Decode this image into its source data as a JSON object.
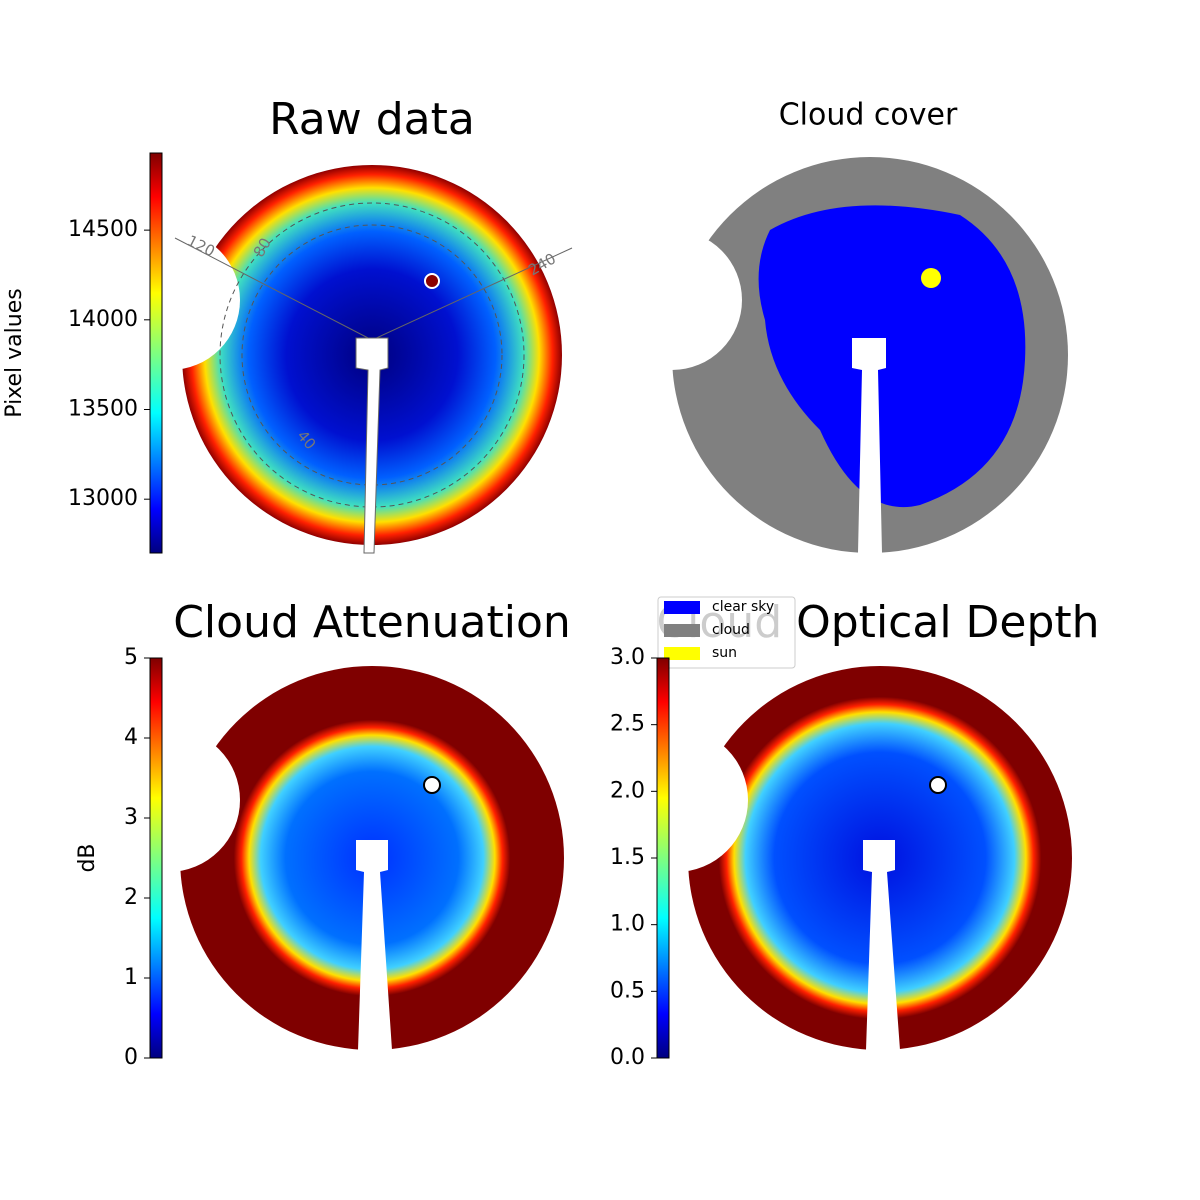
{
  "chart_data": [
    {
      "type": "image",
      "title": "Raw data",
      "clabel": "Pixel values",
      "clim": [
        12700,
        14930
      ],
      "cticks": [
        13000,
        13500,
        14000,
        14500
      ],
      "annotations": [
        "120",
        "80",
        "240",
        "40"
      ]
    },
    {
      "type": "categorical",
      "title": "Cloud cover",
      "legend": [
        {
          "name": "clear sky",
          "color": "#0000ff"
        },
        {
          "name": "cloud",
          "color": "#808080"
        },
        {
          "name": "sun",
          "color": "#ffff00"
        }
      ]
    },
    {
      "type": "image",
      "title": "Cloud Attenuation",
      "clabel": "dB",
      "clim": [
        0,
        5
      ],
      "cticks": [
        0,
        1,
        2,
        3,
        4,
        5
      ]
    },
    {
      "type": "image",
      "title": "Cloud Optical Depth",
      "clim": [
        0,
        3
      ],
      "cticks": [
        {
          "value": 0,
          "label": "0.0"
        },
        {
          "value": 0.5,
          "label": "0.5"
        },
        {
          "value": 1,
          "label": "1.0"
        },
        {
          "value": 1.5,
          "label": "1.5"
        },
        {
          "value": 2,
          "label": "2.0"
        },
        {
          "value": 2.5,
          "label": "2.5"
        },
        {
          "value": 3,
          "label": "3.0"
        }
      ]
    }
  ]
}
